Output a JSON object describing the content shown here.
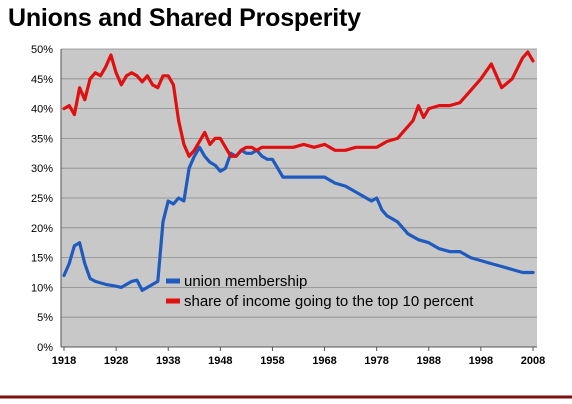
{
  "chart_data": {
    "type": "line",
    "title": "Unions and Shared Prosperity",
    "xlabel": "",
    "ylabel": "",
    "xlim": [
      1918,
      2008
    ],
    "ylim": [
      0,
      50
    ],
    "x_ticks": [
      "1918",
      "1928",
      "1938",
      "1948",
      "1958",
      "1968",
      "1978",
      "1988",
      "1998",
      "2008"
    ],
    "y_ticks": [
      "0%",
      "5%",
      "10%",
      "15%",
      "20%",
      "25%",
      "30%",
      "35%",
      "40%",
      "45%",
      "50%"
    ],
    "grid": true,
    "legend_position": "inside-lower-center",
    "series": [
      {
        "name": "union membership",
        "color": "#1f5bbf",
        "x": [
          1918,
          1919,
          1920,
          1921,
          1922,
          1923,
          1924,
          1926,
          1928,
          1929,
          1930,
          1931,
          1932,
          1933,
          1934,
          1935,
          1936,
          1937,
          1938,
          1939,
          1940,
          1941,
          1942,
          1943,
          1944,
          1945,
          1946,
          1947,
          1948,
          1949,
          1950,
          1951,
          1952,
          1953,
          1954,
          1955,
          1956,
          1957,
          1958,
          1959,
          1960,
          1962,
          1964,
          1966,
          1968,
          1970,
          1972,
          1974,
          1976,
          1977,
          1978,
          1979,
          1980,
          1982,
          1984,
          1986,
          1988,
          1990,
          1992,
          1994,
          1996,
          1998,
          2000,
          2002,
          2004,
          2006,
          2008
        ],
        "values": [
          12,
          14,
          17,
          17.5,
          14,
          11.5,
          11,
          10.5,
          10.2,
          10,
          10.5,
          11,
          11.2,
          9.5,
          10,
          10.5,
          11,
          21,
          24.5,
          24,
          25,
          24.5,
          30,
          32,
          33.5,
          32,
          31,
          30.5,
          29.5,
          30,
          32.5,
          32,
          33,
          32.5,
          32.5,
          33,
          32,
          31.5,
          31.5,
          30,
          28.5,
          28.5,
          28.5,
          28.5,
          28.5,
          27.5,
          27,
          26,
          25,
          24.5,
          25,
          23,
          22,
          21,
          19,
          18,
          17.5,
          16.5,
          16,
          16,
          15,
          14.5,
          14,
          13.5,
          13,
          12.5,
          12.5
        ]
      },
      {
        "name": "share of income going to the top 10 percent",
        "color": "#e01010",
        "x": [
          1918,
          1919,
          1920,
          1921,
          1922,
          1923,
          1924,
          1925,
          1926,
          1927,
          1928,
          1929,
          1930,
          1931,
          1932,
          1933,
          1934,
          1935,
          1936,
          1937,
          1938,
          1939,
          1940,
          1941,
          1942,
          1943,
          1944,
          1945,
          1946,
          1947,
          1948,
          1949,
          1950,
          1951,
          1952,
          1953,
          1954,
          1955,
          1956,
          1958,
          1960,
          1962,
          1964,
          1966,
          1968,
          1970,
          1972,
          1974,
          1976,
          1978,
          1980,
          1982,
          1984,
          1985,
          1986,
          1987,
          1988,
          1990,
          1992,
          1994,
          1996,
          1998,
          2000,
          2002,
          2004,
          2006,
          2007,
          2008
        ],
        "values": [
          40,
          40.5,
          39,
          43.5,
          41.5,
          45,
          46,
          45.5,
          47,
          49,
          46,
          44,
          45.5,
          46,
          45.5,
          44.5,
          45.5,
          44,
          43.5,
          45.5,
          45.5,
          44,
          38,
          34,
          32,
          33,
          34.5,
          36,
          34,
          35,
          35,
          33.5,
          32,
          32,
          33,
          33.5,
          33.5,
          33,
          33.5,
          33.5,
          33.5,
          33.5,
          34,
          33.5,
          34,
          33,
          33,
          33.5,
          33.5,
          33.5,
          34.5,
          35,
          37,
          38,
          40.5,
          38.5,
          40,
          40.5,
          40.5,
          41,
          43,
          45,
          47.5,
          43.5,
          45,
          48.5,
          49.5,
          48
        ]
      }
    ]
  }
}
